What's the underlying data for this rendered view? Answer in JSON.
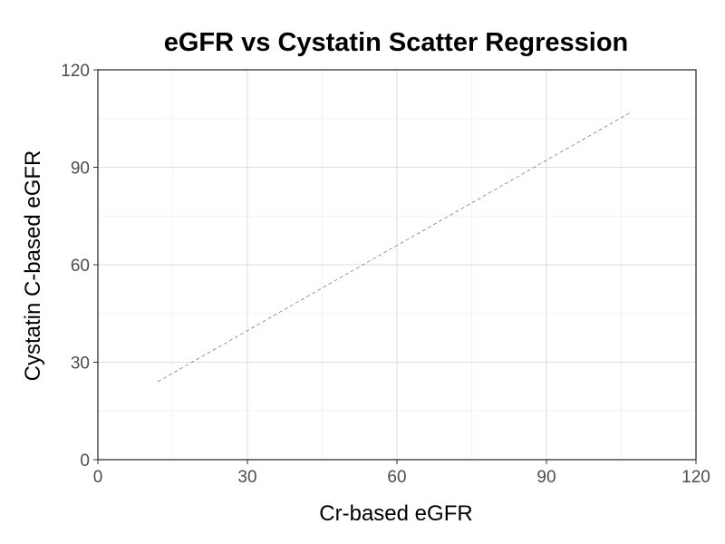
{
  "chart_data": {
    "type": "scatter",
    "title": "eGFR vs Cystatin Scatter Regression",
    "xlabel": "Cr-based eGFR",
    "ylabel": "Cystatin C-based eGFR",
    "xlim": [
      0,
      120
    ],
    "ylim": [
      0,
      120
    ],
    "x_ticks": [
      0,
      30,
      60,
      90,
      120
    ],
    "y_ticks": [
      0,
      30,
      60,
      90,
      120
    ],
    "x_tick_labels": [
      "0",
      "30",
      "60",
      "90",
      "120"
    ],
    "y_tick_labels": [
      "0",
      "30",
      "60",
      "90",
      "120"
    ],
    "grid": true,
    "legend": "none",
    "points": [],
    "regression_line": {
      "style": "dashed",
      "color": "#7f7f7f",
      "x": [
        12,
        107
      ],
      "y": [
        24,
        107
      ]
    }
  }
}
